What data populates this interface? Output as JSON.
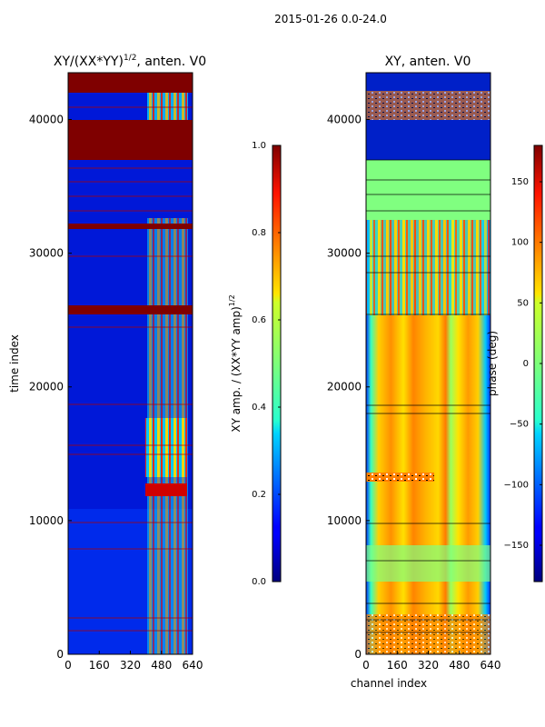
{
  "suptitle": "2015-01-26 0.0-24.0",
  "colors": {
    "axis": "#000000",
    "background": "#ffffff"
  },
  "chart_data": [
    {
      "type": "heatmap",
      "title_main": "XY/(XX*YY)",
      "title_exp": "1/2",
      "title_tail": ", anten. V0",
      "xlabel": "",
      "ylabel": "time index",
      "xlim": [
        0,
        640
      ],
      "ylim": [
        0,
        43500
      ],
      "xticks": [
        "0",
        "160",
        "320",
        "480",
        "640"
      ],
      "yticks": [
        "0",
        "10000",
        "20000",
        "30000",
        "40000"
      ],
      "colorbar": {
        "label_main": "XY amp. / (XX*YY amp)",
        "label_exp": "1/2",
        "range": [
          0.0,
          1.0
        ],
        "ticks": [
          "0.0",
          "0.2",
          "0.4",
          "0.6",
          "0.8",
          "1.0"
        ]
      }
    },
    {
      "type": "heatmap",
      "title_main": "XY, anten. V0",
      "xlabel": "channel index",
      "ylabel": "",
      "xlim": [
        0,
        640
      ],
      "ylim": [
        0,
        43500
      ],
      "xticks": [
        "0",
        "160",
        "320",
        "480",
        "640"
      ],
      "yticks": [
        "0",
        "10000",
        "20000",
        "30000",
        "40000"
      ],
      "colorbar": {
        "label_main": "phase (deg)",
        "range": [
          -180,
          180
        ],
        "ticks": [
          "−150",
          "−100",
          "−50",
          "0",
          "50",
          "100",
          "150"
        ]
      }
    }
  ]
}
